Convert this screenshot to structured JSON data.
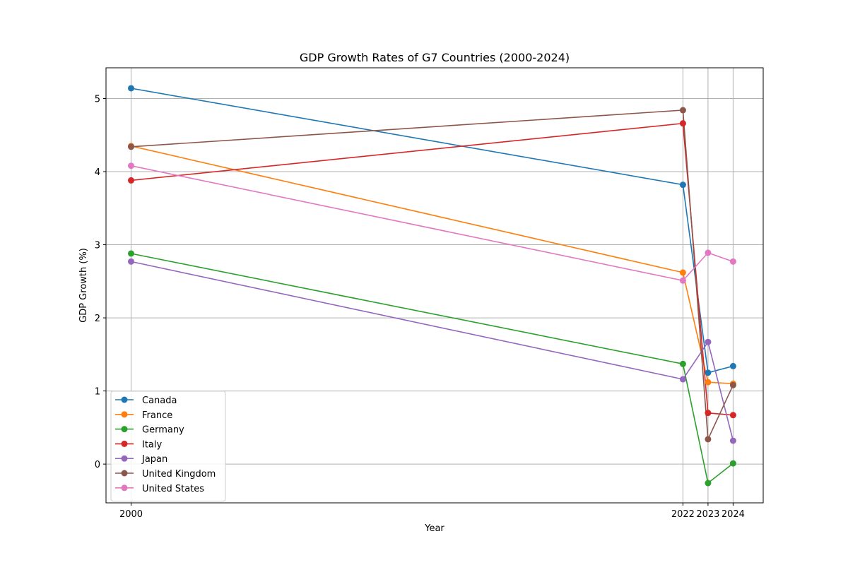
{
  "chart_data": {
    "type": "line",
    "title": "GDP Growth Rates of G7 Countries (2000-2024)",
    "xlabel": "Year",
    "ylabel": "GDP Growth (%)",
    "x": [
      2000,
      2022,
      2023,
      2024
    ],
    "x_tick_labels": [
      "2000",
      "2022",
      "2023",
      "2024"
    ],
    "xlim": [
      1999.0,
      2025.2
    ],
    "ylim": [
      -0.53,
      5.42
    ],
    "y_ticks": [
      0,
      1,
      2,
      3,
      4,
      5
    ],
    "y_tick_labels": [
      "0",
      "1",
      "2",
      "3",
      "4",
      "5"
    ],
    "grid": true,
    "legend_position": "lower-left",
    "series": [
      {
        "name": "Canada",
        "color": "#1f77b4",
        "values": [
          5.14,
          3.82,
          1.25,
          1.34
        ]
      },
      {
        "name": "France",
        "color": "#ff7f0e",
        "values": [
          4.35,
          2.62,
          1.12,
          1.1
        ]
      },
      {
        "name": "Germany",
        "color": "#2ca02c",
        "values": [
          2.88,
          1.37,
          -0.26,
          0.01
        ]
      },
      {
        "name": "Italy",
        "color": "#d62728",
        "values": [
          3.88,
          4.66,
          0.7,
          0.67
        ]
      },
      {
        "name": "Japan",
        "color": "#9467bd",
        "values": [
          2.77,
          1.16,
          1.67,
          0.32
        ]
      },
      {
        "name": "United Kingdom",
        "color": "#8c564b",
        "values": [
          4.34,
          4.84,
          0.34,
          1.08
        ]
      },
      {
        "name": "United States",
        "color": "#e377c2",
        "values": [
          4.08,
          2.51,
          2.89,
          2.77
        ]
      }
    ]
  }
}
